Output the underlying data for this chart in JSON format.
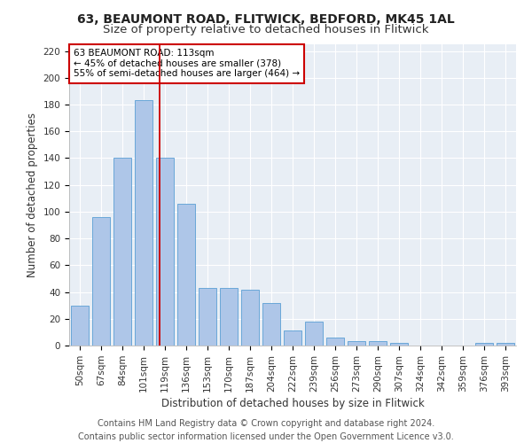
{
  "title1": "63, BEAUMONT ROAD, FLITWICK, BEDFORD, MK45 1AL",
  "title2": "Size of property relative to detached houses in Flitwick",
  "xlabel": "Distribution of detached houses by size in Flitwick",
  "ylabel": "Number of detached properties",
  "categories": [
    "50sqm",
    "67sqm",
    "84sqm",
    "101sqm",
    "119sqm",
    "136sqm",
    "153sqm",
    "170sqm",
    "187sqm",
    "204sqm",
    "222sqm",
    "239sqm",
    "256sqm",
    "273sqm",
    "290sqm",
    "307sqm",
    "324sqm",
    "342sqm",
    "359sqm",
    "376sqm",
    "393sqm"
  ],
  "values": [
    30,
    96,
    140,
    183,
    140,
    106,
    43,
    43,
    42,
    32,
    11,
    18,
    6,
    3,
    3,
    2,
    0,
    0,
    0,
    2,
    2
  ],
  "bar_color": "#aec6e8",
  "bar_edge_color": "#5a9fd4",
  "bar_width": 0.85,
  "vline_x": 3.75,
  "vline_color": "#cc0000",
  "annotation_text": "63 BEAUMONT ROAD: 113sqm\n← 45% of detached houses are smaller (378)\n55% of semi-detached houses are larger (464) →",
  "annotation_box_color": "#ffffff",
  "annotation_box_edge": "#cc0000",
  "ylim": [
    0,
    225
  ],
  "yticks": [
    0,
    20,
    40,
    60,
    80,
    100,
    120,
    140,
    160,
    180,
    200,
    220
  ],
  "background_color": "#e8eef5",
  "footer_text": "Contains HM Land Registry data © Crown copyright and database right 2024.\nContains public sector information licensed under the Open Government Licence v3.0.",
  "title_fontsize": 10,
  "title2_fontsize": 9.5,
  "axis_label_fontsize": 8.5,
  "tick_fontsize": 7.5,
  "footer_fontsize": 7
}
